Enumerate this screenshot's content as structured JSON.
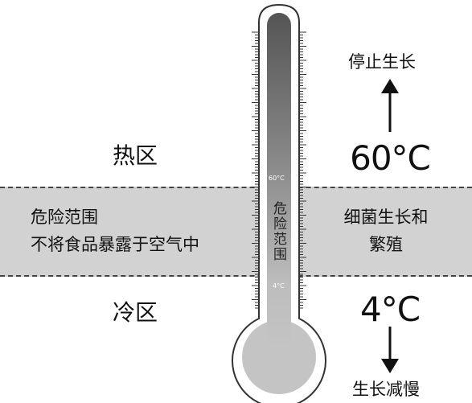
{
  "danger_zone": {
    "left_line1": "危险范围",
    "left_line2": "不将食品暴露于空气中",
    "right_line1": "细菌生长和",
    "right_line2": "繁殖",
    "vertical_label": "危险范围"
  },
  "hot_zone": {
    "label": "热区",
    "temperature": "60°C",
    "effect": "停止生长"
  },
  "cold_zone": {
    "label": "冷区",
    "temperature": "4°C",
    "effect": "生长减慢"
  },
  "thermometer": {
    "mark_high": "60°C",
    "mark_low": "4°C"
  },
  "colors": {
    "band": "#d2d2d2",
    "tube_dark": "#555555",
    "tube_light": "#bdbdbd"
  }
}
